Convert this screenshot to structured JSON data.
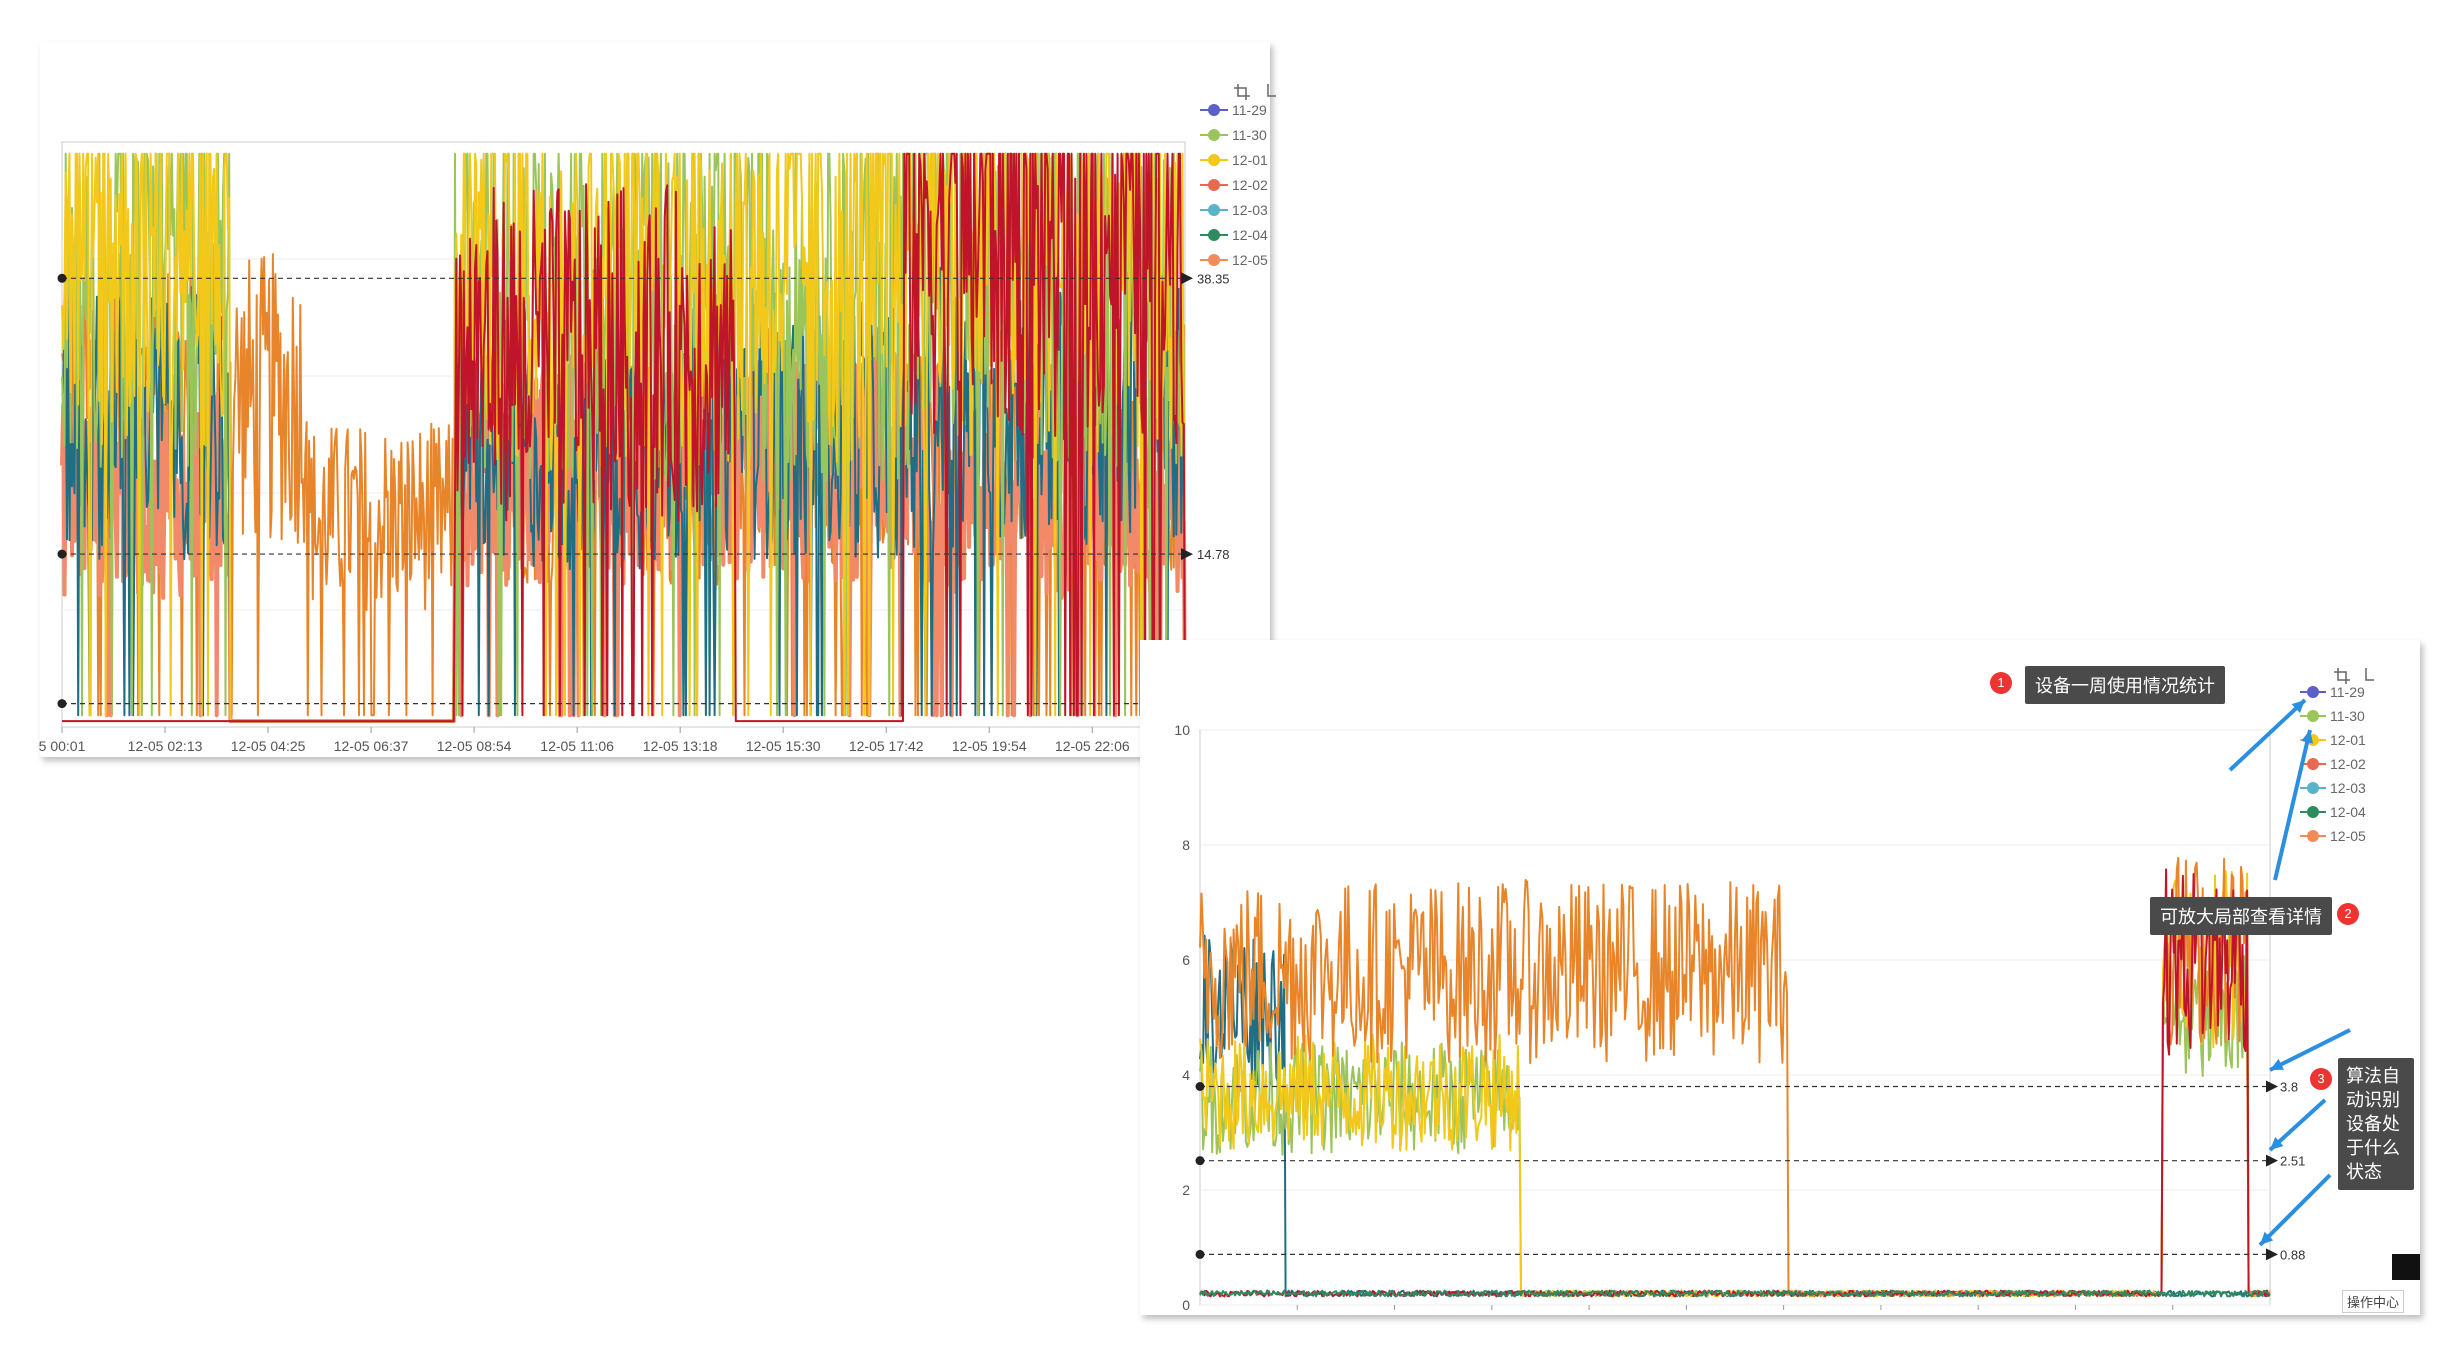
{
  "chart_data": [
    {
      "type": "line",
      "title": "",
      "xlabel": "",
      "ylabel": "",
      "x_ticks": [
        "5 00:01",
        "12-05 02:13",
        "12-05 04:25",
        "12-05 06:37",
        "12-05 08:54",
        "12-05 11:06",
        "12-05 13:18",
        "12-05 15:30",
        "12-05 17:42",
        "12-05 19:54",
        "12-05 22:06"
      ],
      "y_ticks": [],
      "ylim": [
        0,
        50
      ],
      "series": [
        {
          "name": "11-29",
          "color": "#5b5fc7"
        },
        {
          "name": "11-30",
          "color": "#9bc55b"
        },
        {
          "name": "12-01",
          "color": "#f2c81a"
        },
        {
          "name": "12-02",
          "color": "#e8694f"
        },
        {
          "name": "12-03",
          "color": "#5ab3c8"
        },
        {
          "name": "12-04",
          "color": "#2e8b5e"
        },
        {
          "name": "12-05",
          "color": "#f08c5a"
        }
      ],
      "reference_lines": [
        {
          "value": 38.35,
          "label": "38.35"
        },
        {
          "value": 14.78,
          "label": "14.78"
        },
        {
          "value": 2.0,
          "label": ""
        }
      ],
      "grid": true,
      "legend_position": "right"
    },
    {
      "type": "line",
      "title": "",
      "xlabel": "",
      "ylabel": "",
      "y_ticks": [
        "0",
        "2",
        "4",
        "6",
        "8",
        "10"
      ],
      "ylim": [
        0,
        10
      ],
      "series": [
        {
          "name": "11-29",
          "color": "#5b5fc7"
        },
        {
          "name": "11-30",
          "color": "#9bc55b"
        },
        {
          "name": "12-01",
          "color": "#f2c81a"
        },
        {
          "name": "12-02",
          "color": "#e8694f"
        },
        {
          "name": "12-03",
          "color": "#5ab3c8"
        },
        {
          "name": "12-04",
          "color": "#2e8b5e"
        },
        {
          "name": "12-05",
          "color": "#f08c5a"
        }
      ],
      "reference_lines": [
        {
          "value": 3.8,
          "label": "3.8"
        },
        {
          "value": 2.51,
          "label": "2.51"
        },
        {
          "value": 0.88,
          "label": "0.88"
        }
      ],
      "grid": true,
      "legend_position": "right"
    }
  ],
  "annotations": {
    "callout1": {
      "num": "1",
      "text": "设备一周使用情况统计"
    },
    "callout2": {
      "num": "2",
      "text": "可放大局部查看详情"
    },
    "callout3": {
      "num": "3",
      "text": "算法自动识别设备处于什么状态"
    }
  },
  "footer": {
    "op_center": "操作中心"
  },
  "colors": {
    "arrow_blue": "#2a8fe0",
    "dark_red": "#c0142a",
    "teal_dark": "#1f6e84",
    "orange": "#e8852a",
    "salmon": "#f28a6a"
  }
}
